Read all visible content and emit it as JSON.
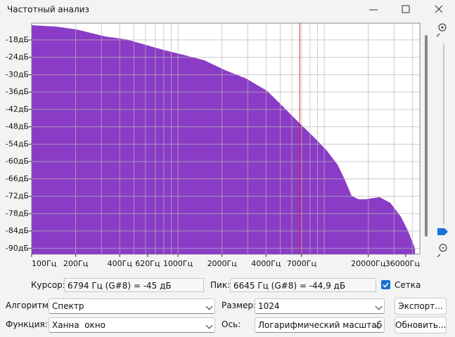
{
  "window": {
    "title": "Частотный анализ"
  },
  "chart_data": {
    "type": "area",
    "x": [
      100,
      147,
      205,
      319,
      446,
      620,
      818,
      1080,
      1510,
      2090,
      2920,
      4070,
      5110,
      6700,
      8400,
      10400,
      12300,
      13700,
      15400,
      17100,
      19200,
      23900,
      28300,
      33400,
      37400,
      41700
    ],
    "values": [
      -12.9,
      -13.4,
      -14.4,
      -16.8,
      -17.8,
      -19.9,
      -21.6,
      -23.1,
      -25,
      -28.4,
      -31.3,
      -35.6,
      -40.5,
      -46.5,
      -51.3,
      -56.2,
      -61,
      -65.8,
      -71.9,
      -73,
      -73,
      -72.3,
      -74.3,
      -79.1,
      -84,
      -90
    ],
    "color": "#8a3cc6",
    "xlim": [
      100,
      45000
    ],
    "ylim": [
      -92,
      -12.2
    ],
    "log_x": true,
    "grid": true,
    "cursor": 6794,
    "xticks": [
      {
        "value": 100,
        "label": "100Гц"
      },
      {
        "value": 200,
        "label": "200Гц"
      },
      {
        "value": 400,
        "label": "400Гц"
      },
      {
        "value": 620,
        "label": "620Гц"
      },
      {
        "value": 1000,
        "label": "1000Гц"
      },
      {
        "value": 2000,
        "label": "2000Гц"
      },
      {
        "value": 4000,
        "label": "4000Гц"
      },
      {
        "value": 7000,
        "label": "7000Гц"
      },
      {
        "value": 20000,
        "label": "20000Гц"
      },
      {
        "value": 36000,
        "label": "36000Гц"
      }
    ],
    "yticks": [
      {
        "value": -18,
        "label": "-18дБ"
      },
      {
        "value": -24,
        "label": "-24дБ"
      },
      {
        "value": -30,
        "label": "-30дБ"
      },
      {
        "value": -36,
        "label": "-36дБ"
      },
      {
        "value": -42,
        "label": "-42дБ"
      },
      {
        "value": -48,
        "label": "-48дБ"
      },
      {
        "value": -54,
        "label": "-54дБ"
      },
      {
        "value": -60,
        "label": "-60дБ"
      },
      {
        "value": -66,
        "label": "-66дБ"
      },
      {
        "value": -72,
        "label": "-72дБ"
      },
      {
        "value": -78,
        "label": "-78дБ"
      },
      {
        "value": -84,
        "label": "-84дБ"
      },
      {
        "value": -90,
        "label": "-90дБ"
      }
    ]
  },
  "controls": {
    "cursor_label": "Курсор:",
    "cursor_value": "6794 Гц (G#8) = -45 дБ",
    "peak_label": "Пик:",
    "peak_value": "6645 Гц (G#8) = -44,9 дБ",
    "grid_label": "Сетка",
    "algorithm_label": "Алгоритм:",
    "algorithm_value": "Спектр",
    "size_label": "Размер:",
    "size_value": "1024",
    "export_button": "Экспорт...",
    "function_label": "Функция:",
    "function_value": "Ханна  окно",
    "axis_label": "Ось:",
    "axis_value": "Логарифмический масштаб",
    "refresh_button": "Обновить..."
  }
}
